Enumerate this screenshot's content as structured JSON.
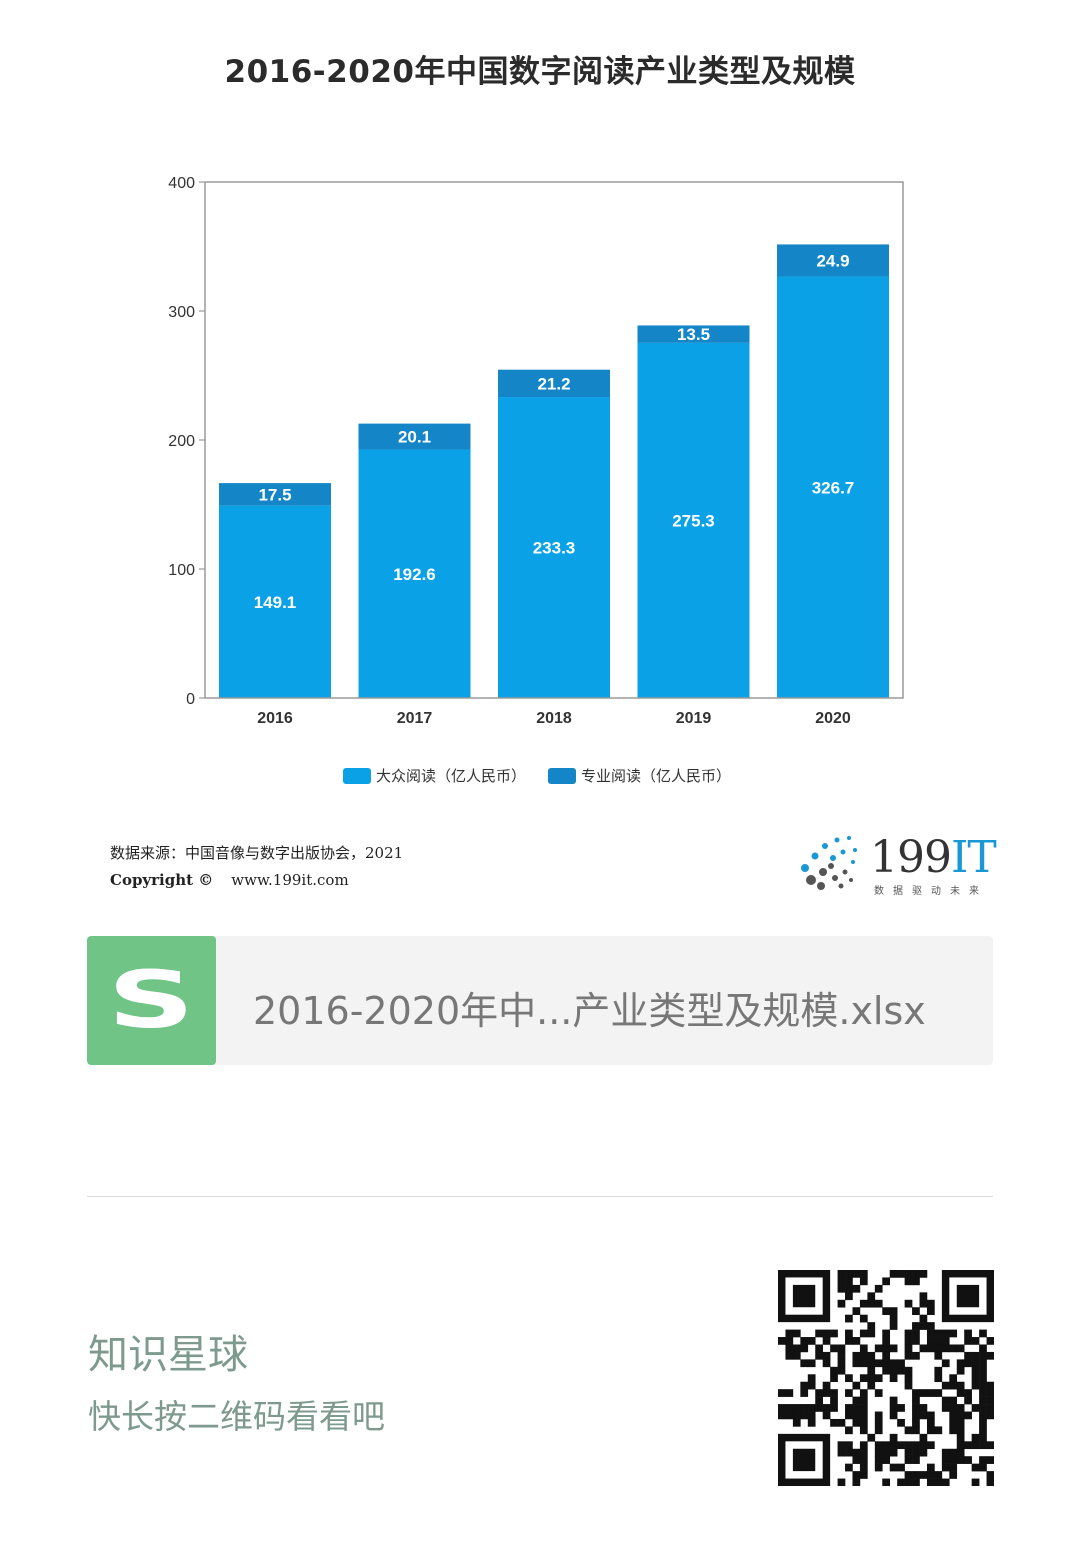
{
  "chart_data": {
    "type": "bar",
    "stacked": true,
    "title": "2016-2020年中国数字阅读产业类型及规模",
    "categories": [
      "2016",
      "2017",
      "2018",
      "2019",
      "2020"
    ],
    "series": [
      {
        "name": "大众阅读（亿人民币）",
        "values": [
          149.1,
          192.6,
          233.3,
          275.3,
          326.7
        ],
        "color": "#0aa1e6"
      },
      {
        "name": "专业阅读（亿人民币）",
        "values": [
          17.5,
          20.1,
          21.2,
          13.5,
          24.9
        ],
        "color": "#1486c7"
      }
    ],
    "ylim": [
      0,
      400
    ],
    "yticks": [
      0,
      100,
      200,
      300,
      400
    ],
    "grid": false,
    "legend_position": "bottom"
  },
  "source": {
    "text": "数据来源：中国音像与数字出版协会，2021",
    "copyright": "Copyright ©",
    "website": "www.199it.com"
  },
  "logo": {
    "brand": "199",
    "brand_suffix": "IT",
    "slogan": "数据驱动未来",
    "accent": "#1a97d5"
  },
  "file_card": {
    "icon_letter": "S",
    "icon_color": "#6fc486",
    "file_name": "2016-2020年中...产业类型及规模.xlsx"
  },
  "footer": {
    "title": "知识星球",
    "hint": "快长按二维码看看吧"
  }
}
